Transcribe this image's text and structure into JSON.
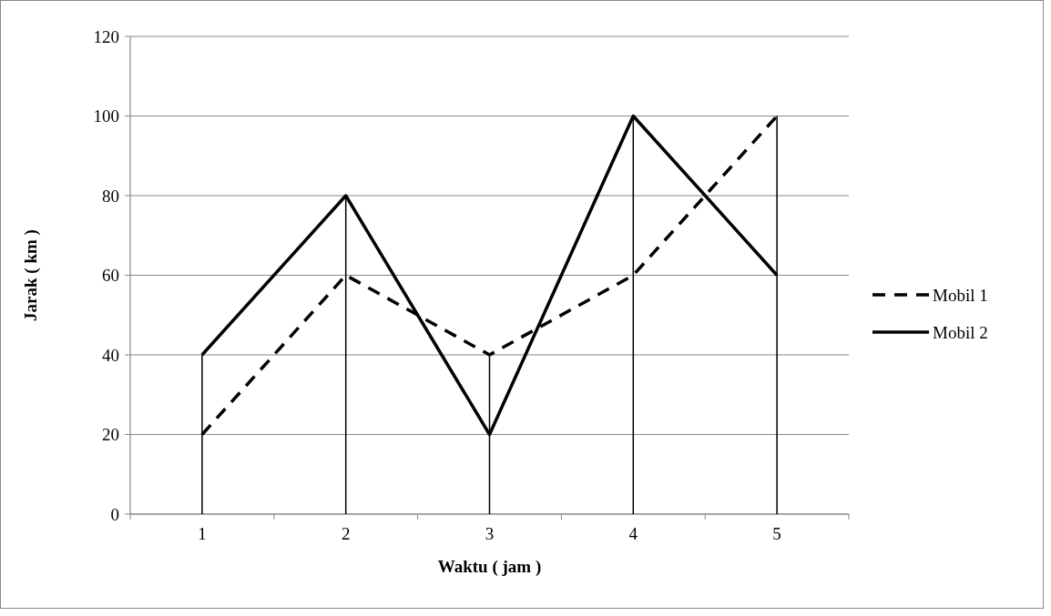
{
  "chart_data": {
    "type": "line",
    "xlabel": "Waktu ( jam )",
    "ylabel": "Jarak ( km )",
    "categories": [
      "1",
      "2",
      "3",
      "4",
      "5"
    ],
    "series": [
      {
        "name": "Mobil 1",
        "color": "#000000",
        "values": [
          20,
          60,
          40,
          60,
          100
        ],
        "line_style": "dashed",
        "errors": [
          null,
          null,
          [
            0,
            40
          ],
          null,
          [
            0,
            100
          ]
        ]
      },
      {
        "name": "Mobil 2",
        "color": "#000000",
        "values": [
          40,
          80,
          20,
          100,
          60
        ],
        "line_style": "solid",
        "errors": [
          [
            0,
            40
          ],
          [
            0,
            80
          ],
          null,
          [
            0,
            100
          ],
          null
        ]
      }
    ],
    "ylim": [
      0,
      120
    ],
    "yticks": [
      0,
      20,
      40,
      60,
      80,
      100,
      120
    ],
    "grid": "y",
    "legend": "right",
    "marker": "none"
  }
}
